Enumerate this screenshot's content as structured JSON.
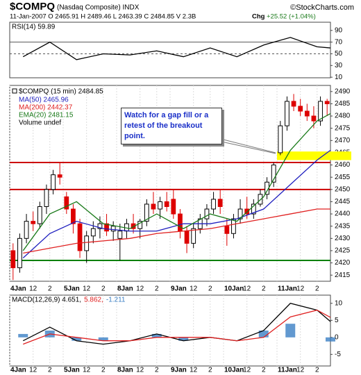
{
  "header": {
    "symbol": "$COMPQ",
    "name": "(Nasdaq Composite) INDX",
    "credit": "©StockCharts.com",
    "quote": "11-Jan-2007  O 2465.91  H 2489.46  L 2463.39  C 2484.85  V 2.3B",
    "change_label": "Chg",
    "change": "+25.52 (+1.04%)"
  },
  "chart_data": [
    {
      "type": "line",
      "label": "RSI(14) 59.89",
      "xlim": [
        0,
        48
      ],
      "ylim": [
        9,
        104
      ],
      "yticks": [
        10,
        30,
        50,
        70,
        90
      ],
      "levels": [
        70,
        50
      ],
      "x": [
        2,
        6,
        10,
        14,
        18,
        22,
        26,
        30,
        34,
        38,
        42,
        46,
        48
      ],
      "series": [
        {
          "color": "#000000",
          "values": [
            45,
            70,
            40,
            50,
            48,
            55,
            45,
            60,
            45,
            65,
            78,
            62,
            60
          ]
        }
      ]
    },
    {
      "type": "candlestick",
      "label": "$COMPQ (15 min) 2484.85",
      "volume_label": "Volume undef",
      "xlim": [
        0,
        48
      ],
      "ylim": [
        2412.5,
        2492.5
      ],
      "yticks": [
        2415,
        2420,
        2425,
        2430,
        2435,
        2440,
        2445,
        2450,
        2455,
        2460,
        2465,
        2470,
        2475,
        2480,
        2485,
        2490
      ],
      "xticks": [
        {
          "value": 0,
          "label": "4Jan"
        },
        {
          "value": 3.5,
          "label": "12"
        },
        {
          "value": 6,
          "label": "2"
        },
        {
          "value": 8,
          "label": "5Jan"
        },
        {
          "value": 11.5,
          "label": "12"
        },
        {
          "value": 14,
          "label": "2"
        },
        {
          "value": 16,
          "label": "8Jan"
        },
        {
          "value": 19.5,
          "label": "12"
        },
        {
          "value": 22,
          "label": "2"
        },
        {
          "value": 24,
          "label": "9Jan"
        },
        {
          "value": 27.5,
          "label": "12"
        },
        {
          "value": 30,
          "label": "2"
        },
        {
          "value": 32,
          "label": "10Jan"
        },
        {
          "value": 35.5,
          "label": "12"
        },
        {
          "value": 38,
          "label": "2"
        },
        {
          "value": 40,
          "label": "11Jan"
        },
        {
          "value": 43.5,
          "label": "12"
        },
        {
          "value": 46,
          "label": "2"
        }
      ],
      "candles": [
        [
          2425,
          2428,
          2413,
          2418
        ],
        [
          2418,
          2432,
          2416,
          2430
        ],
        [
          2430,
          2440,
          2428,
          2437
        ],
        [
          2437,
          2441,
          2433,
          2436
        ],
        [
          2436,
          2445,
          2434,
          2443
        ],
        [
          2443,
          2452,
          2440,
          2450
        ],
        [
          2450,
          2458,
          2448,
          2456
        ],
        [
          2456,
          2461,
          2452,
          2455
        ],
        [
          2447,
          2449,
          2440,
          2442
        ],
        [
          2442,
          2444,
          2432,
          2436
        ],
        [
          2436,
          2438,
          2422,
          2425
        ],
        [
          2425,
          2433,
          2420,
          2431
        ],
        [
          2431,
          2437,
          2428,
          2434
        ],
        [
          2434,
          2439,
          2430,
          2436
        ],
        [
          2436,
          2440,
          2431,
          2433
        ],
        [
          2433,
          2437,
          2429,
          2435
        ],
        [
          2430,
          2436,
          2421,
          2433
        ],
        [
          2433,
          2438,
          2430,
          2436
        ],
        [
          2436,
          2440,
          2432,
          2434
        ],
        [
          2434,
          2438,
          2430,
          2437
        ],
        [
          2437,
          2446,
          2435,
          2444
        ],
        [
          2444,
          2449,
          2440,
          2442
        ],
        [
          2442,
          2447,
          2438,
          2445
        ],
        [
          2445,
          2449,
          2441,
          2443
        ],
        [
          2446,
          2450,
          2438,
          2440
        ],
        [
          2440,
          2442,
          2430,
          2433
        ],
        [
          2433,
          2435,
          2424,
          2428
        ],
        [
          2428,
          2436,
          2426,
          2434
        ],
        [
          2434,
          2440,
          2432,
          2438
        ],
        [
          2438,
          2444,
          2435,
          2442
        ],
        [
          2442,
          2449,
          2440,
          2446
        ],
        [
          2446,
          2450,
          2440,
          2443
        ],
        [
          2435,
          2438,
          2427,
          2432
        ],
        [
          2432,
          2440,
          2430,
          2438
        ],
        [
          2438,
          2446,
          2436,
          2442
        ],
        [
          2442,
          2447,
          2438,
          2440
        ],
        [
          2440,
          2446,
          2438,
          2444
        ],
        [
          2444,
          2450,
          2443,
          2448
        ],
        [
          2448,
          2455,
          2446,
          2453
        ],
        [
          2453,
          2461,
          2451,
          2460
        ],
        [
          2465,
          2478,
          2464,
          2476
        ],
        [
          2476,
          2488,
          2474,
          2486
        ],
        [
          2486,
          2489,
          2482,
          2484
        ],
        [
          2484,
          2487,
          2480,
          2482
        ],
        [
          2482,
          2485,
          2478,
          2480
        ],
        [
          2480,
          2484,
          2475,
          2478
        ],
        [
          2478,
          2488,
          2476,
          2486
        ],
        [
          2486,
          2487,
          2480,
          2485
        ]
      ],
      "overlays": [
        {
          "name": "MA(50) 2465.96",
          "color": "#1f1fbf",
          "x": [
            2,
            6,
            10,
            14,
            18,
            22,
            26,
            30,
            34,
            38,
            42,
            46,
            48
          ],
          "values": [
            2422,
            2432,
            2437,
            2434,
            2433,
            2433,
            2436,
            2436,
            2438,
            2442,
            2452,
            2462,
            2466
          ]
        },
        {
          "name": "MA(200) 2442.37",
          "color": "#e02020",
          "x": [
            2,
            6,
            10,
            14,
            18,
            22,
            26,
            30,
            34,
            38,
            42,
            46,
            48
          ],
          "values": [
            2424,
            2426,
            2428,
            2429,
            2430,
            2432,
            2433,
            2434,
            2436,
            2438,
            2440,
            2442,
            2442
          ]
        },
        {
          "name": "EMA(20) 2481.15",
          "color": "#1a7a1a",
          "x": [
            2,
            6,
            10,
            14,
            18,
            22,
            26,
            30,
            34,
            38,
            42,
            46,
            48
          ],
          "values": [
            2425,
            2440,
            2445,
            2436,
            2434,
            2440,
            2434,
            2440,
            2437,
            2447,
            2466,
            2478,
            2481
          ]
        }
      ],
      "levels": [
        {
          "value": 2461,
          "color": "#cc0000"
        },
        {
          "value": 2450,
          "color": "#cc0000"
        },
        {
          "value": 2421,
          "color": "#008000"
        }
      ],
      "zone": {
        "from": 2462,
        "to": 2465.5,
        "x_from": 40,
        "color": "#ffff00"
      },
      "annotation": "Watch for a gap fill or a retest of the breakout point."
    },
    {
      "type": "macd",
      "label": [
        "MACD(12,26,9) 4.651,",
        "5.862,",
        "-1.211"
      ],
      "xlim": [
        0,
        48
      ],
      "ylim": [
        -8.4,
        12.4
      ],
      "yticks": [
        -5,
        0,
        5,
        10
      ],
      "xticks": [
        {
          "value": 0,
          "label": "4Jan"
        },
        {
          "value": 3.5,
          "label": "12"
        },
        {
          "value": 6,
          "label": "2"
        },
        {
          "value": 8,
          "label": "5Jan"
        },
        {
          "value": 11.5,
          "label": "12"
        },
        {
          "value": 14,
          "label": "2"
        },
        {
          "value": 16,
          "label": "8Jan"
        },
        {
          "value": 19.5,
          "label": "12"
        },
        {
          "value": 22,
          "label": "2"
        },
        {
          "value": 24,
          "label": "9Jan"
        },
        {
          "value": 27.5,
          "label": "12"
        },
        {
          "value": 30,
          "label": "2"
        },
        {
          "value": 32,
          "label": "10Jan"
        },
        {
          "value": 35.5,
          "label": "12"
        },
        {
          "value": 38,
          "label": "2"
        },
        {
          "value": 40,
          "label": "11Jan"
        },
        {
          "value": 43.5,
          "label": "12"
        },
        {
          "value": 46,
          "label": "2"
        }
      ],
      "x": [
        2,
        6,
        10,
        14,
        18,
        22,
        26,
        30,
        34,
        38,
        42,
        46,
        48
      ],
      "series": [
        {
          "color": "#000000",
          "values": [
            -1,
            3,
            -1,
            -2,
            -1,
            1,
            -1,
            0,
            -1,
            2,
            10,
            8,
            4.651
          ]
        },
        {
          "color": "#e02020",
          "values": [
            -2,
            1,
            0,
            -1,
            -1,
            0,
            0,
            0,
            -1,
            0,
            6,
            8,
            5.862
          ]
        },
        {
          "color": "#3b7fc4",
          "style": "histogram",
          "values": [
            1,
            2,
            -1,
            -1,
            0,
            1,
            -1,
            0,
            0,
            2,
            4,
            0,
            -1.211
          ]
        }
      ]
    }
  ]
}
